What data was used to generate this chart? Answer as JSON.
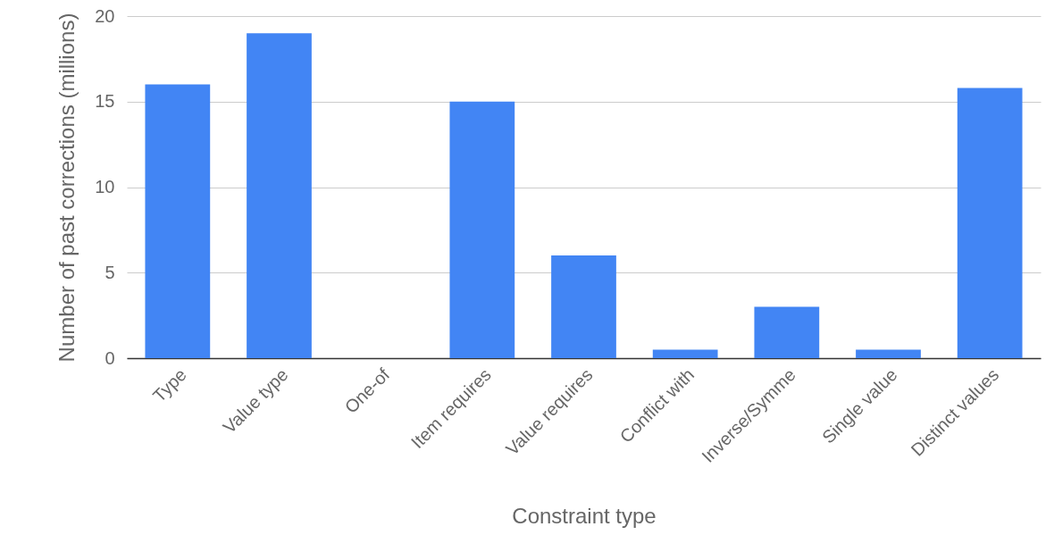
{
  "chart_data": {
    "type": "bar",
    "xlabel": "Constraint type",
    "ylabel": "Number of past corrections (millions)",
    "categories": [
      "Type",
      "Value type",
      "One-of",
      "Item requires",
      "Value requires",
      "Conflict with",
      "Inverse/Symme",
      "Single value",
      "Distinct values"
    ],
    "values": [
      16,
      19,
      0,
      15,
      6,
      0.5,
      3,
      0.5,
      15.8
    ],
    "color": "#4285f4",
    "ylim": [
      0,
      20
    ],
    "yticks": [
      0,
      5,
      10,
      15,
      20
    ],
    "grid": "y"
  }
}
